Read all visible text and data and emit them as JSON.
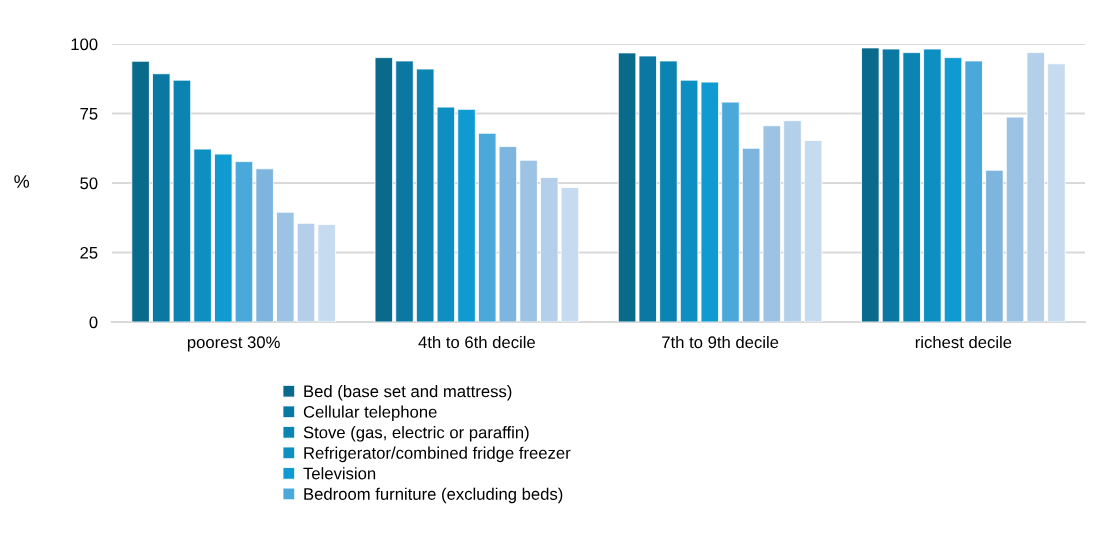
{
  "chart_data": {
    "type": "bar",
    "ylabel": "%",
    "categories": [
      "poorest 30%",
      "4th to 6th decile",
      "7th to 9th decile",
      "richest decile"
    ],
    "series": [
      {
        "name": "Bed (base set and mattress)",
        "color": "#0a6a8c",
        "values": [
          93.8,
          95.1,
          96.8,
          98.6
        ]
      },
      {
        "name": "Cellular telephone",
        "color": "#0b77a3",
        "values": [
          89.3,
          93.9,
          95.7,
          98.2
        ]
      },
      {
        "name": "Stove (gas, electric or paraffin)",
        "color": "#0b84b1",
        "values": [
          87.0,
          91.0,
          93.9,
          96.9
        ]
      },
      {
        "name": "Refrigerator/combined fridge freezer",
        "color": "#0e8fc2",
        "values": [
          62.2,
          77.3,
          87.0,
          98.2
        ]
      },
      {
        "name": "Television",
        "color": "#0f9ad1",
        "values": [
          60.4,
          76.5,
          86.3,
          95.1
        ]
      },
      {
        "name": "Bedroom furniture (excluding beds)",
        "color": "#4aa8db",
        "values": [
          57.7,
          67.9,
          79.1,
          93.9
        ]
      },
      {
        "color": "#7eb5de",
        "values": [
          55.1,
          63.1,
          62.5,
          54.6
        ]
      },
      {
        "color": "#9cc3e4",
        "values": [
          39.5,
          58.2,
          70.6,
          73.7
        ]
      },
      {
        "color": "#b3cfea",
        "values": [
          35.5,
          52.0,
          72.4,
          96.9
        ]
      },
      {
        "color": "#c6dbef",
        "values": [
          35.1,
          48.4,
          65.3,
          92.9
        ]
      }
    ],
    "ylim": [
      0,
      100
    ],
    "yticks": [
      0,
      25,
      50,
      75,
      100
    ],
    "grid": "y",
    "legend": "bottom"
  }
}
